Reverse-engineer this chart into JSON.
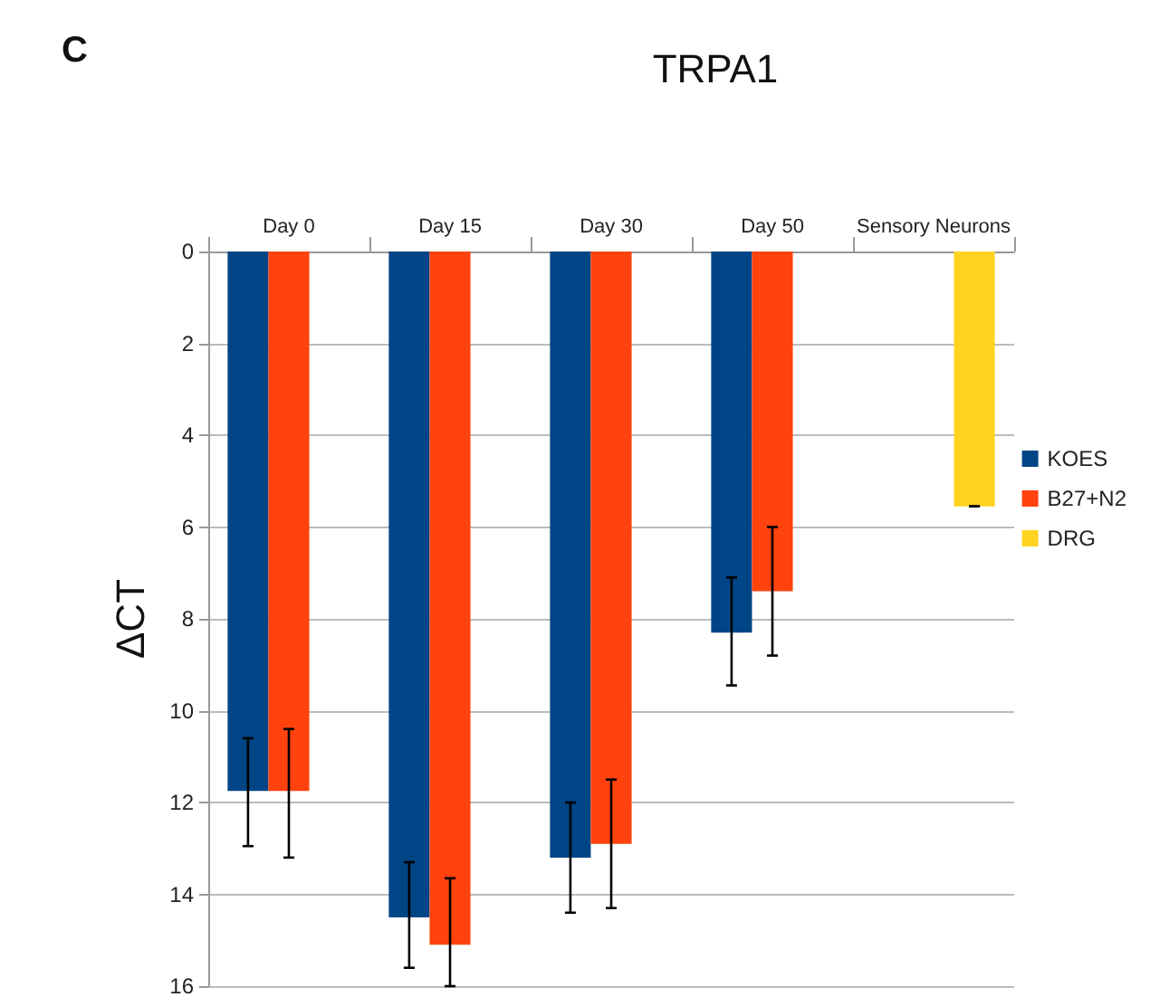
{
  "chart_data": {
    "type": "bar",
    "title": "TRPA1",
    "ylabel": "ΔCT",
    "annotations": [
      "C"
    ],
    "categories": [
      "Day 0",
      "Day 15",
      "Day 30",
      "Day 50",
      "Sensory Neurons"
    ],
    "series": [
      {
        "name": "KOES",
        "color": "#004586",
        "values": [
          11.75,
          14.5,
          13.2,
          8.3,
          null
        ],
        "errors": [
          [
            10.6,
            12.95
          ],
          [
            13.3,
            15.6
          ],
          [
            12.0,
            14.4
          ],
          [
            7.1,
            9.45
          ],
          null
        ]
      },
      {
        "name": "B27+N2",
        "color": "#ff420e",
        "values": [
          11.75,
          15.1,
          12.9,
          7.4,
          null
        ],
        "errors": [
          [
            10.4,
            13.2
          ],
          [
            13.65,
            16
          ],
          [
            11.5,
            14.3
          ],
          [
            6.0,
            8.8
          ],
          null
        ]
      },
      {
        "name": "DRG",
        "color": "#ffd320",
        "values": [
          null,
          null,
          null,
          null,
          5.55
        ],
        "errors": [
          null,
          null,
          null,
          null,
          0
        ]
      }
    ],
    "ylim": [
      16,
      0
    ],
    "yticks": [
      0,
      2,
      4,
      6,
      8,
      10,
      12,
      14,
      16
    ],
    "grid": "y",
    "legend": "right"
  }
}
